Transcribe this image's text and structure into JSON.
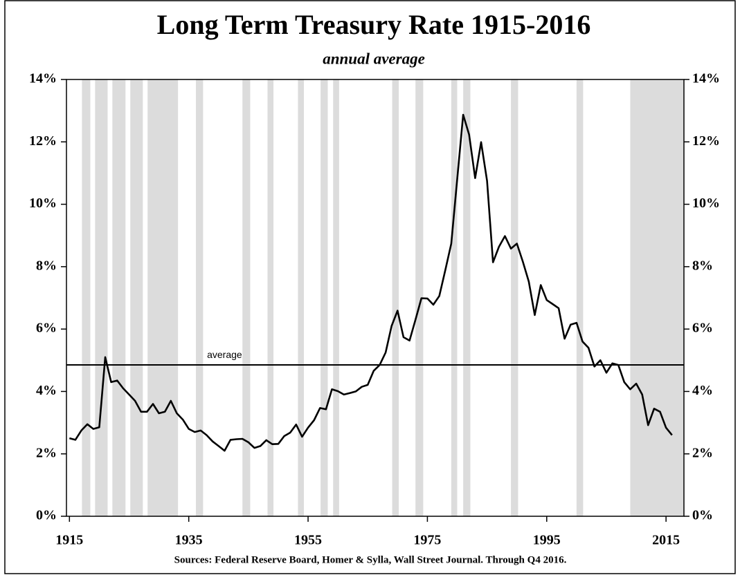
{
  "chart_data": {
    "type": "line",
    "title": "Long Term Treasury Rate 1915-2016",
    "subtitle": "annual average",
    "source": "Sources: Federal Reserve Board, Homer & Sylla, Wall Street Journal. Through Q4 2016.",
    "x": [
      1915,
      1916,
      1917,
      1918,
      1919,
      1920,
      1921,
      1922,
      1923,
      1924,
      1925,
      1926,
      1927,
      1928,
      1929,
      1930,
      1931,
      1932,
      1933,
      1934,
      1935,
      1936,
      1937,
      1938,
      1939,
      1940,
      1941,
      1942,
      1943,
      1944,
      1945,
      1946,
      1947,
      1948,
      1949,
      1950,
      1951,
      1952,
      1953,
      1954,
      1955,
      1956,
      1957,
      1958,
      1959,
      1960,
      1961,
      1962,
      1963,
      1964,
      1965,
      1966,
      1967,
      1968,
      1969,
      1970,
      1971,
      1972,
      1973,
      1974,
      1975,
      1976,
      1977,
      1978,
      1979,
      1980,
      1981,
      1982,
      1983,
      1984,
      1985,
      1986,
      1987,
      1988,
      1989,
      1990,
      1991,
      1992,
      1993,
      1994,
      1995,
      1996,
      1997,
      1998,
      1999,
      2000,
      2001,
      2002,
      2003,
      2004,
      2005,
      2006,
      2007,
      2008,
      2009,
      2010,
      2011,
      2012,
      2013,
      2014,
      2015,
      2016
    ],
    "values": [
      2.5,
      2.45,
      2.75,
      2.95,
      2.8,
      2.85,
      5.1,
      4.3,
      4.35,
      4.1,
      3.9,
      3.7,
      3.35,
      3.35,
      3.6,
      3.3,
      3.35,
      3.7,
      3.3,
      3.1,
      2.8,
      2.7,
      2.75,
      2.6,
      2.4,
      2.25,
      2.1,
      2.45,
      2.47,
      2.48,
      2.37,
      2.19,
      2.25,
      2.44,
      2.31,
      2.32,
      2.57,
      2.68,
      2.94,
      2.55,
      2.84,
      3.08,
      3.47,
      3.43,
      4.07,
      4.01,
      3.9,
      3.95,
      4.0,
      4.15,
      4.21,
      4.66,
      4.85,
      5.25,
      6.1,
      6.59,
      5.74,
      5.63,
      6.3,
      6.99,
      6.98,
      6.78,
      7.06,
      7.89,
      8.74,
      10.81,
      12.87,
      12.23,
      10.84,
      11.99,
      10.75,
      8.14,
      8.64,
      8.98,
      8.58,
      8.74,
      8.16,
      7.52,
      6.45,
      7.41,
      6.93,
      6.8,
      6.67,
      5.69,
      6.14,
      6.2,
      5.6,
      5.4,
      4.8,
      5.0,
      4.6,
      4.9,
      4.85,
      4.3,
      4.07,
      4.25,
      3.9,
      2.92,
      3.45,
      3.35,
      2.84,
      2.6
    ],
    "color": "#000000",
    "average": {
      "value": 4.85,
      "label": "average"
    },
    "shaded": [
      [
        1917.1,
        1918.5
      ],
      [
        1919.3,
        1921.4
      ],
      [
        1922.2,
        1924.4
      ],
      [
        1925.2,
        1927.3
      ],
      [
        1928.1,
        1933.2
      ],
      [
        1936.2,
        1937.4
      ],
      [
        1944,
        1945.3
      ],
      [
        1948.2,
        1949.2
      ],
      [
        1953.3,
        1954.3
      ],
      [
        1957.1,
        1958.3
      ],
      [
        1959.2,
        1960.2
      ],
      [
        1969.1,
        1970.2
      ],
      [
        1973,
        1974.3
      ],
      [
        1979,
        1980
      ],
      [
        1981,
        1982.2
      ],
      [
        1989,
        1990.2
      ],
      [
        2000,
        2001.1
      ],
      [
        2009,
        2018
      ]
    ],
    "shade_color": "#dcdcdc",
    "xlim": [
      1914.5,
      2018
    ],
    "xticks": [
      1915,
      1935,
      1955,
      1975,
      1995,
      2015
    ],
    "ylim": [
      0,
      14
    ],
    "yticks": [
      {
        "value": 0,
        "label": "0%"
      },
      {
        "value": 2,
        "label": "2%"
      },
      {
        "value": 4,
        "label": "4%"
      },
      {
        "value": 6,
        "label": "6%"
      },
      {
        "value": 8,
        "label": "8%"
      },
      {
        "value": 10,
        "label": "10%"
      },
      {
        "value": 12,
        "label": "12%"
      },
      {
        "value": 14,
        "label": "14%"
      }
    ],
    "y2lim": [
      0,
      14
    ],
    "y2ticks": [
      {
        "value": 0,
        "label": "0%"
      },
      {
        "value": 2,
        "label": "2%"
      },
      {
        "value": 4,
        "label": "4%"
      },
      {
        "value": 6,
        "label": "6%"
      },
      {
        "value": 8,
        "label": "8%"
      },
      {
        "value": 10,
        "label": "10%"
      },
      {
        "value": 12,
        "label": "12%"
      },
      {
        "value": 14,
        "label": "14%"
      }
    ]
  }
}
